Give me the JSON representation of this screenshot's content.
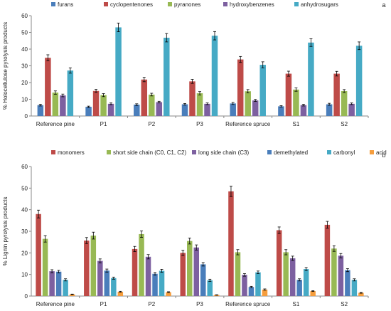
{
  "chart_data": [
    {
      "type": "bar",
      "panel_label": "a",
      "ylabel": "% Holocellulose pyrolysis products",
      "xlabel": "",
      "ylim": [
        0,
        60
      ],
      "yticks": [
        0,
        10,
        20,
        30,
        40,
        50,
        60
      ],
      "grid": false,
      "legend": "top",
      "categories": [
        "Reference pine",
        "P1",
        "P2",
        "P3",
        "Reference spruce",
        "S1",
        "S2"
      ],
      "series": [
        {
          "name": "furans",
          "color": "#4a7ebb",
          "values": [
            6.5,
            5.5,
            6.8,
            7.0,
            7.5,
            5.8,
            7.0
          ],
          "errors": [
            0.5,
            0.4,
            0.5,
            0.5,
            0.6,
            0.4,
            0.6
          ]
        },
        {
          "name": "cyclopentenones",
          "color": "#be4b48",
          "values": [
            34.8,
            15.0,
            21.8,
            20.7,
            33.8,
            25.3,
            25.3
          ],
          "errors": [
            1.8,
            0.9,
            1.3,
            1.2,
            1.8,
            1.5,
            1.4
          ]
        },
        {
          "name": "pyranones",
          "color": "#98b954",
          "values": [
            14.0,
            12.5,
            12.8,
            13.6,
            14.8,
            15.8,
            14.9
          ],
          "errors": [
            1.0,
            0.9,
            0.8,
            1.0,
            1.0,
            1.0,
            0.9
          ]
        },
        {
          "name": "hydroxybenzenes",
          "color": "#7d60a0",
          "values": [
            12.3,
            7.3,
            8.3,
            7.3,
            9.3,
            6.5,
            7.3
          ],
          "errors": [
            0.8,
            0.5,
            0.5,
            0.5,
            0.6,
            0.5,
            0.5
          ]
        },
        {
          "name": "anhydrosugars",
          "color": "#46aac5",
          "values": [
            27.2,
            53.0,
            46.8,
            48.0,
            30.6,
            43.9,
            42.0
          ],
          "errors": [
            1.6,
            2.6,
            2.5,
            2.5,
            1.8,
            2.3,
            2.3
          ]
        }
      ]
    },
    {
      "type": "bar",
      "panel_label": "b",
      "ylabel": "% Lignin pyrolysis products",
      "xlabel": "",
      "ylim": [
        0,
        60
      ],
      "yticks": [
        0,
        10,
        20,
        30,
        40,
        50,
        60
      ],
      "grid": false,
      "legend": "top",
      "categories": [
        "Reference pine",
        "P1",
        "P2",
        "P3",
        "Reference spruce",
        "S1",
        "S2"
      ],
      "series": [
        {
          "name": "monomers",
          "color": "#be4b48",
          "values": [
            38.0,
            25.7,
            21.8,
            20.0,
            48.5,
            30.5,
            33.0
          ],
          "errors": [
            1.8,
            1.4,
            1.2,
            1.2,
            2.4,
            1.5,
            1.6
          ]
        },
        {
          "name": "short side chain (C0, C1, C2)",
          "color": "#98b954",
          "values": [
            26.5,
            28.0,
            28.7,
            25.5,
            20.3,
            20.3,
            22.0
          ],
          "errors": [
            1.5,
            1.6,
            1.5,
            1.4,
            1.2,
            1.2,
            1.3
          ]
        },
        {
          "name": "long side chain (C3)",
          "color": "#7d60a0",
          "values": [
            11.5,
            16.3,
            18.2,
            22.5,
            9.8,
            17.5,
            18.7
          ],
          "errors": [
            0.7,
            0.9,
            1.0,
            1.2,
            0.6,
            1.0,
            1.0
          ]
        },
        {
          "name": "demethylated",
          "color": "#4a7ebb",
          "values": [
            11.3,
            11.8,
            10.3,
            14.7,
            4.2,
            7.5,
            12.0
          ],
          "errors": [
            0.6,
            0.7,
            0.6,
            0.8,
            0.3,
            0.5,
            0.7
          ]
        },
        {
          "name": "carbonyl",
          "color": "#46aac5",
          "values": [
            7.5,
            8.3,
            11.7,
            7.3,
            11.0,
            12.5,
            7.5
          ],
          "errors": [
            0.5,
            0.5,
            0.7,
            0.5,
            0.6,
            0.7,
            0.5
          ]
        },
        {
          "name": "acid",
          "color": "#f59d3d",
          "values": [
            0.8,
            2.0,
            1.8,
            0.5,
            3.0,
            2.3,
            1.5
          ],
          "errors": [
            0.1,
            0.2,
            0.2,
            0.1,
            0.3,
            0.2,
            0.2
          ]
        }
      ]
    }
  ]
}
